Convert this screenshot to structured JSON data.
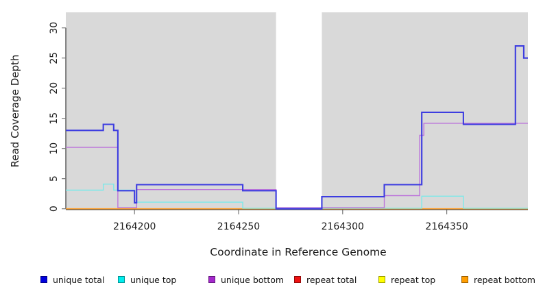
{
  "chart_data": {
    "type": "line",
    "subtype": "step-coverage",
    "title": "",
    "xlabel": "Coordinate in Reference Genome",
    "ylabel": "Read Coverage Depth",
    "x_range": [
      2164167,
      2164389
    ],
    "y_range": [
      0,
      32.5
    ],
    "x_ticks": [
      2164200,
      2164250,
      2164300,
      2164350
    ],
    "y_ticks": [
      0,
      5,
      10,
      15,
      20,
      25,
      30
    ],
    "grid": false,
    "plot_bg_color": "#d9d9d9",
    "page_bg_color": "#ffffff",
    "axis_color": "#3a3a3a",
    "tick_color": "#777777",
    "masked_region": {
      "x_start": 2164268,
      "x_end": 2164290,
      "color": "#ffffff"
    },
    "series": [
      {
        "name": "repeat top",
        "color": "#f5f53a",
        "legend_color": "#ffff00",
        "steps": [
          [
            2164167,
            0
          ]
        ]
      },
      {
        "name": "repeat total",
        "color": "#e03030",
        "legend_color": "#ee1111",
        "steps": [
          [
            2164167,
            0
          ]
        ]
      },
      {
        "name": "repeat bottom",
        "color": "#ff9d26",
        "legend_color": "#ff9d00",
        "steps": [
          [
            2164167,
            0
          ]
        ]
      },
      {
        "name": "unique top",
        "color": "#7ae9e9",
        "legend_color": "#00eeee",
        "steps": [
          [
            2164167,
            3
          ],
          [
            2164185,
            4
          ],
          [
            2164190,
            3
          ],
          [
            2164200,
            1
          ],
          [
            2164252,
            0
          ],
          [
            2164338,
            2
          ],
          [
            2164358,
            0
          ]
        ]
      },
      {
        "name": "unique bottom",
        "color": "#bc74da",
        "legend_color": "#a428cc",
        "steps": [
          [
            2164167,
            10
          ],
          [
            2164192,
            0
          ],
          [
            2164201,
            3
          ],
          [
            2164268,
            0
          ],
          [
            2164320,
            2
          ],
          [
            2164337,
            12
          ],
          [
            2164339,
            14
          ]
        ]
      },
      {
        "name": "unique total",
        "color": "#3d3de0",
        "legend_color": "#0000dd",
        "steps": [
          [
            2164167,
            13
          ],
          [
            2164185,
            14
          ],
          [
            2164190,
            13
          ],
          [
            2164192,
            3
          ],
          [
            2164200,
            1
          ],
          [
            2164201,
            4
          ],
          [
            2164252,
            3
          ],
          [
            2164268,
            0
          ],
          [
            2164290,
            2
          ],
          [
            2164320,
            4
          ],
          [
            2164338,
            16
          ],
          [
            2164358,
            14
          ],
          [
            2164383,
            27
          ],
          [
            2164387,
            25
          ]
        ]
      }
    ],
    "legend": [
      {
        "label": "unique total",
        "color": "#0000dd"
      },
      {
        "label": "unique top",
        "color": "#00eeee"
      },
      {
        "label": "unique bottom",
        "color": "#a428cc"
      },
      {
        "label": "repeat total",
        "color": "#ee1111"
      },
      {
        "label": "repeat top",
        "color": "#ffff00"
      },
      {
        "label": "repeat bottom",
        "color": "#ff9d00"
      }
    ]
  }
}
